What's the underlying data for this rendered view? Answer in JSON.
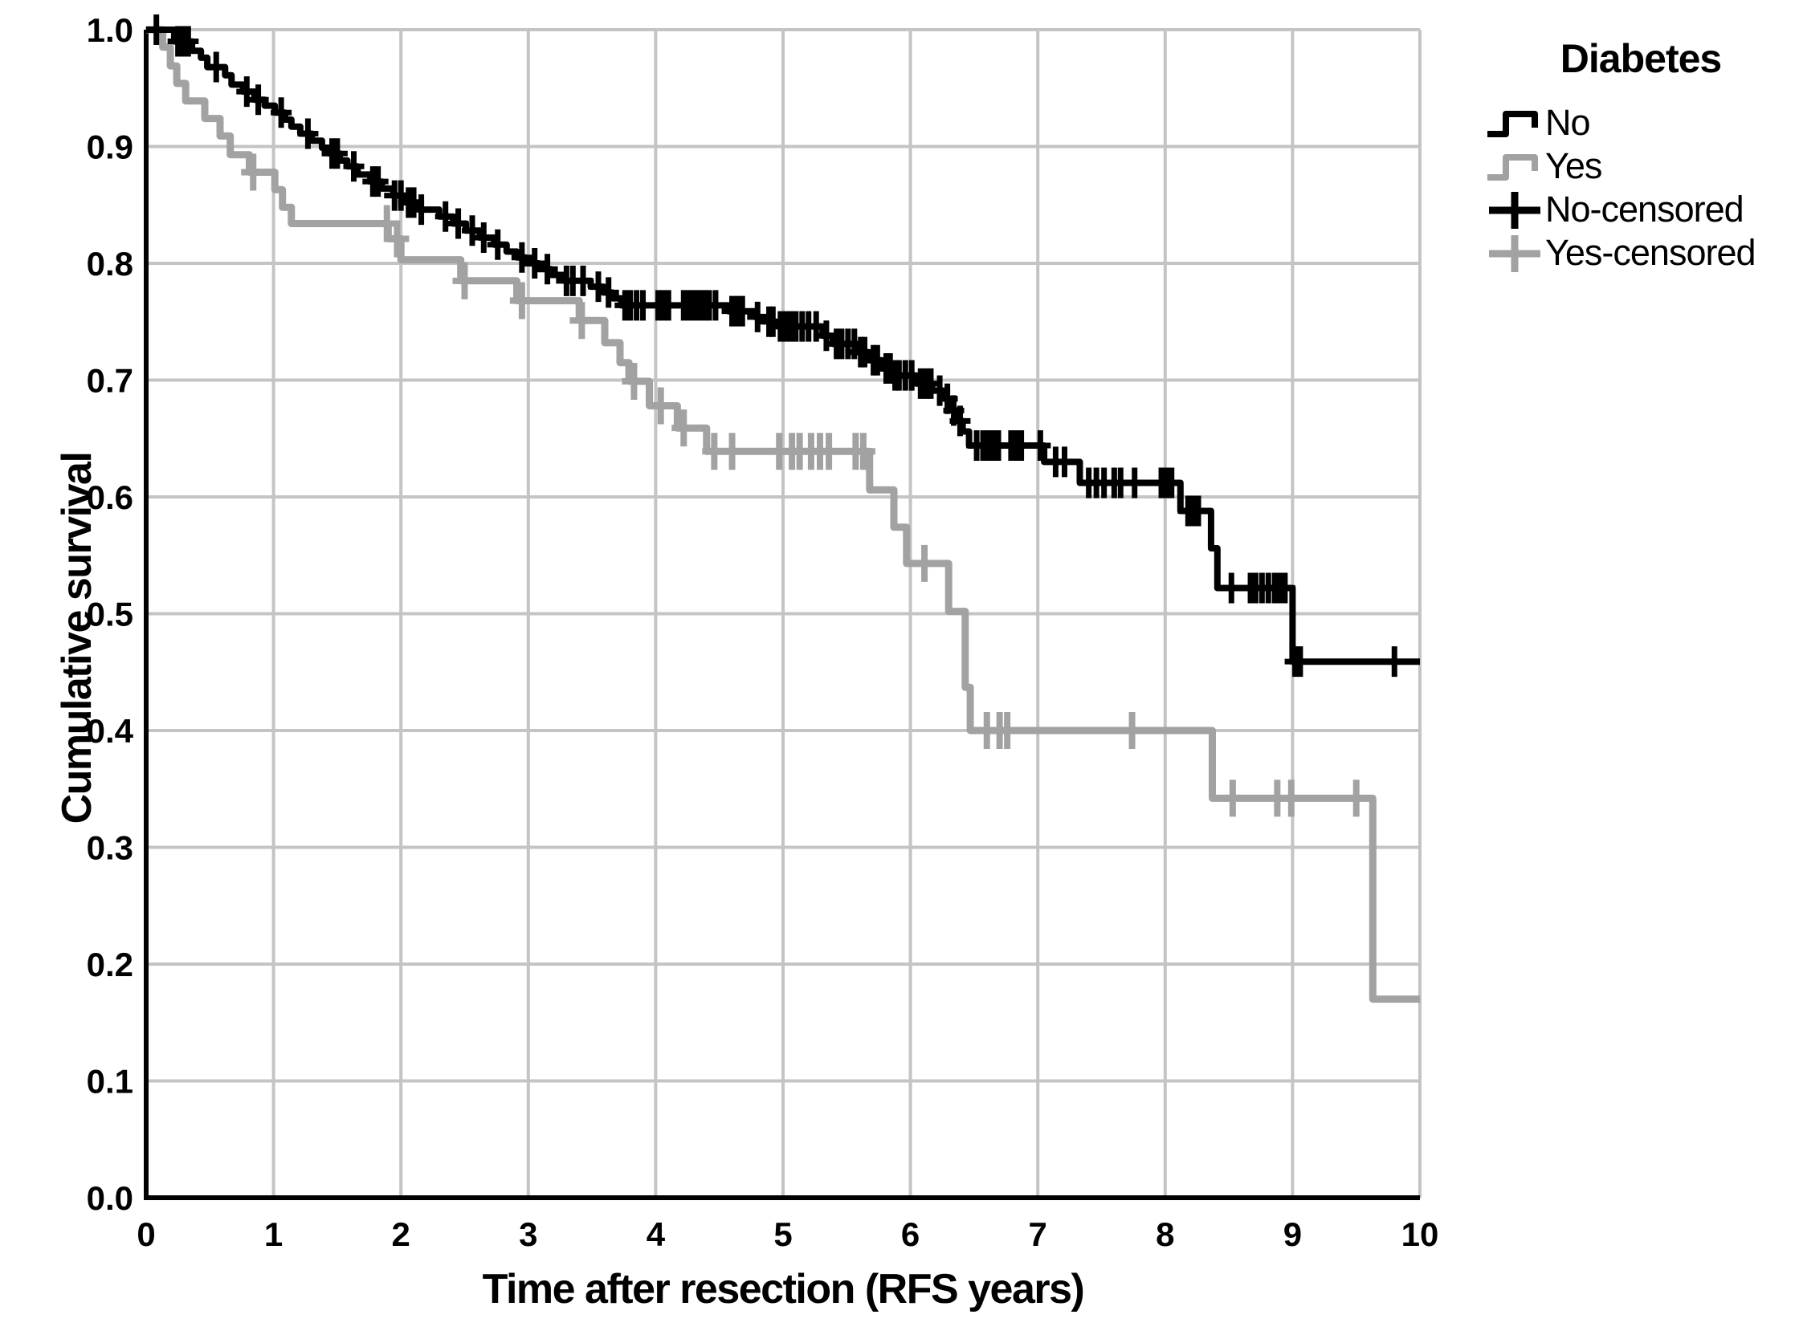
{
  "chart_data": {
    "type": "line",
    "subtype": "kaplan-meier-step-curves",
    "title": "",
    "xlabel": "Time after resection (RFS years)",
    "ylabel": "Cumulative survival",
    "xlim": [
      0,
      10
    ],
    "ylim": [
      0.0,
      1.0
    ],
    "grid": true,
    "x_ticks": [
      "0",
      "1",
      "2",
      "3",
      "4",
      "5",
      "6",
      "7",
      "8",
      "9",
      "10"
    ],
    "y_ticks": [
      "0.0",
      "0.1",
      "0.2",
      "0.3",
      "0.4",
      "0.5",
      "0.6",
      "0.7",
      "0.8",
      "0.9",
      "1.0"
    ],
    "colors": {
      "grid": "#c4c4c4",
      "axis": "#000000",
      "background": "#ffffff",
      "no": "#000000",
      "yes": "#a2a2a2"
    },
    "legend": {
      "title": "Diabetes",
      "position": "outside-top-right",
      "entries": [
        {
          "label": "No",
          "marker": "step-line",
          "color": "#000000"
        },
        {
          "label": "Yes",
          "marker": "step-line",
          "color": "#a2a2a2"
        },
        {
          "label": "No-censored",
          "marker": "plus",
          "color": "#000000"
        },
        {
          "label": "Yes-censored",
          "marker": "plus",
          "color": "#a2a2a2"
        }
      ]
    },
    "series": [
      {
        "name": "No",
        "color": "#000000",
        "steps": [
          [
            0,
            1.0
          ],
          [
            0.22,
            0.99
          ],
          [
            0.36,
            0.982
          ],
          [
            0.43,
            0.976
          ],
          [
            0.48,
            0.968
          ],
          [
            0.62,
            0.961
          ],
          [
            0.67,
            0.953
          ],
          [
            0.76,
            0.947
          ],
          [
            0.85,
            0.94
          ],
          [
            0.93,
            0.935
          ],
          [
            1.01,
            0.929
          ],
          [
            1.09,
            0.923
          ],
          [
            1.14,
            0.917
          ],
          [
            1.21,
            0.911
          ],
          [
            1.3,
            0.905
          ],
          [
            1.38,
            0.899
          ],
          [
            1.44,
            0.894
          ],
          [
            1.52,
            0.888
          ],
          [
            1.58,
            0.883
          ],
          [
            1.66,
            0.876
          ],
          [
            1.76,
            0.87
          ],
          [
            1.85,
            0.864
          ],
          [
            1.94,
            0.858
          ],
          [
            2.04,
            0.852
          ],
          [
            2.14,
            0.846
          ],
          [
            2.3,
            0.84
          ],
          [
            2.41,
            0.834
          ],
          [
            2.51,
            0.828
          ],
          [
            2.62,
            0.822
          ],
          [
            2.73,
            0.816
          ],
          [
            2.83,
            0.81
          ],
          [
            2.91,
            0.805
          ],
          [
            2.98,
            0.8
          ],
          [
            3.08,
            0.795
          ],
          [
            3.18,
            0.79
          ],
          [
            3.28,
            0.785
          ],
          [
            3.49,
            0.78
          ],
          [
            3.59,
            0.775
          ],
          [
            3.66,
            0.77
          ],
          [
            3.73,
            0.764
          ],
          [
            4.57,
            0.759
          ],
          [
            4.78,
            0.754
          ],
          [
            4.88,
            0.75
          ],
          [
            4.96,
            0.746
          ],
          [
            5.31,
            0.738
          ],
          [
            5.39,
            0.731
          ],
          [
            5.58,
            0.724
          ],
          [
            5.67,
            0.717
          ],
          [
            5.77,
            0.71
          ],
          [
            5.85,
            0.704
          ],
          [
            6.05,
            0.697
          ],
          [
            6.17,
            0.691
          ],
          [
            6.27,
            0.684
          ],
          [
            6.32,
            0.674
          ],
          [
            6.37,
            0.665
          ],
          [
            6.41,
            0.656
          ],
          [
            6.46,
            0.644
          ],
          [
            7.05,
            0.63
          ],
          [
            7.33,
            0.612
          ],
          [
            8.12,
            0.588
          ],
          [
            8.36,
            0.556
          ],
          [
            8.41,
            0.522
          ],
          [
            9.0,
            0.459
          ]
        ],
        "censor_times": [
          0.08,
          0.25,
          0.29,
          0.33,
          0.55,
          0.79,
          0.88,
          1.06,
          1.27,
          1.46,
          1.5,
          1.63,
          1.78,
          1.82,
          1.95,
          2.0,
          2.06,
          2.1,
          2.16,
          2.35,
          2.45,
          2.56,
          2.65,
          2.76,
          2.95,
          3.05,
          3.15,
          3.3,
          3.35,
          3.43,
          3.55,
          3.63,
          3.76,
          3.8,
          3.85,
          3.9,
          4.02,
          4.06,
          4.1,
          4.22,
          4.26,
          4.3,
          4.34,
          4.38,
          4.42,
          4.47,
          4.6,
          4.64,
          4.68,
          4.8,
          4.89,
          4.92,
          4.98,
          5.02,
          5.06,
          5.1,
          5.15,
          5.2,
          5.26,
          5.34,
          5.42,
          5.46,
          5.51,
          5.56,
          5.61,
          5.64,
          5.71,
          5.74,
          5.81,
          5.84,
          5.88,
          5.91,
          5.96,
          6.01,
          6.08,
          6.12,
          6.16,
          6.23,
          6.29,
          6.34,
          6.39,
          6.52,
          6.57,
          6.61,
          6.65,
          6.69,
          6.79,
          6.83,
          6.87,
          7.02,
          7.14,
          7.21,
          7.4,
          7.46,
          7.52,
          7.6,
          7.65,
          7.76,
          7.97,
          8.01,
          8.05,
          8.18,
          8.22,
          8.26,
          8.52,
          8.67,
          8.71,
          8.76,
          8.81,
          8.86,
          8.9,
          8.94,
          9.02,
          9.06,
          9.8
        ]
      },
      {
        "name": "Yes",
        "color": "#a2a2a2",
        "steps": [
          [
            0,
            1.0
          ],
          [
            0.13,
            0.985
          ],
          [
            0.19,
            0.969
          ],
          [
            0.24,
            0.954
          ],
          [
            0.31,
            0.939
          ],
          [
            0.46,
            0.924
          ],
          [
            0.58,
            0.909
          ],
          [
            0.66,
            0.893
          ],
          [
            0.81,
            0.878
          ],
          [
            1.01,
            0.863
          ],
          [
            1.07,
            0.848
          ],
          [
            1.14,
            0.834
          ],
          [
            1.9,
            0.821
          ],
          [
            2.0,
            0.803
          ],
          [
            2.47,
            0.785
          ],
          [
            2.91,
            0.768
          ],
          [
            3.4,
            0.751
          ],
          [
            3.6,
            0.732
          ],
          [
            3.72,
            0.715
          ],
          [
            3.79,
            0.699
          ],
          [
            3.95,
            0.678
          ],
          [
            4.17,
            0.659
          ],
          [
            4.4,
            0.639
          ],
          [
            5.68,
            0.606
          ],
          [
            5.87,
            0.574
          ],
          [
            5.97,
            0.543
          ],
          [
            6.3,
            0.502
          ],
          [
            6.43,
            0.437
          ],
          [
            6.47,
            0.4
          ],
          [
            8.37,
            0.342
          ],
          [
            9.63,
            0.17
          ]
        ],
        "censor_times": [
          0.84,
          1.89,
          1.97,
          2.5,
          2.95,
          3.42,
          3.83,
          4.04,
          4.22,
          4.46,
          4.6,
          4.97,
          5.07,
          5.13,
          5.22,
          5.29,
          5.36,
          5.57,
          5.63,
          6.11,
          6.6,
          6.7,
          6.76,
          7.74,
          8.53,
          8.88,
          8.99,
          9.5
        ]
      }
    ]
  }
}
